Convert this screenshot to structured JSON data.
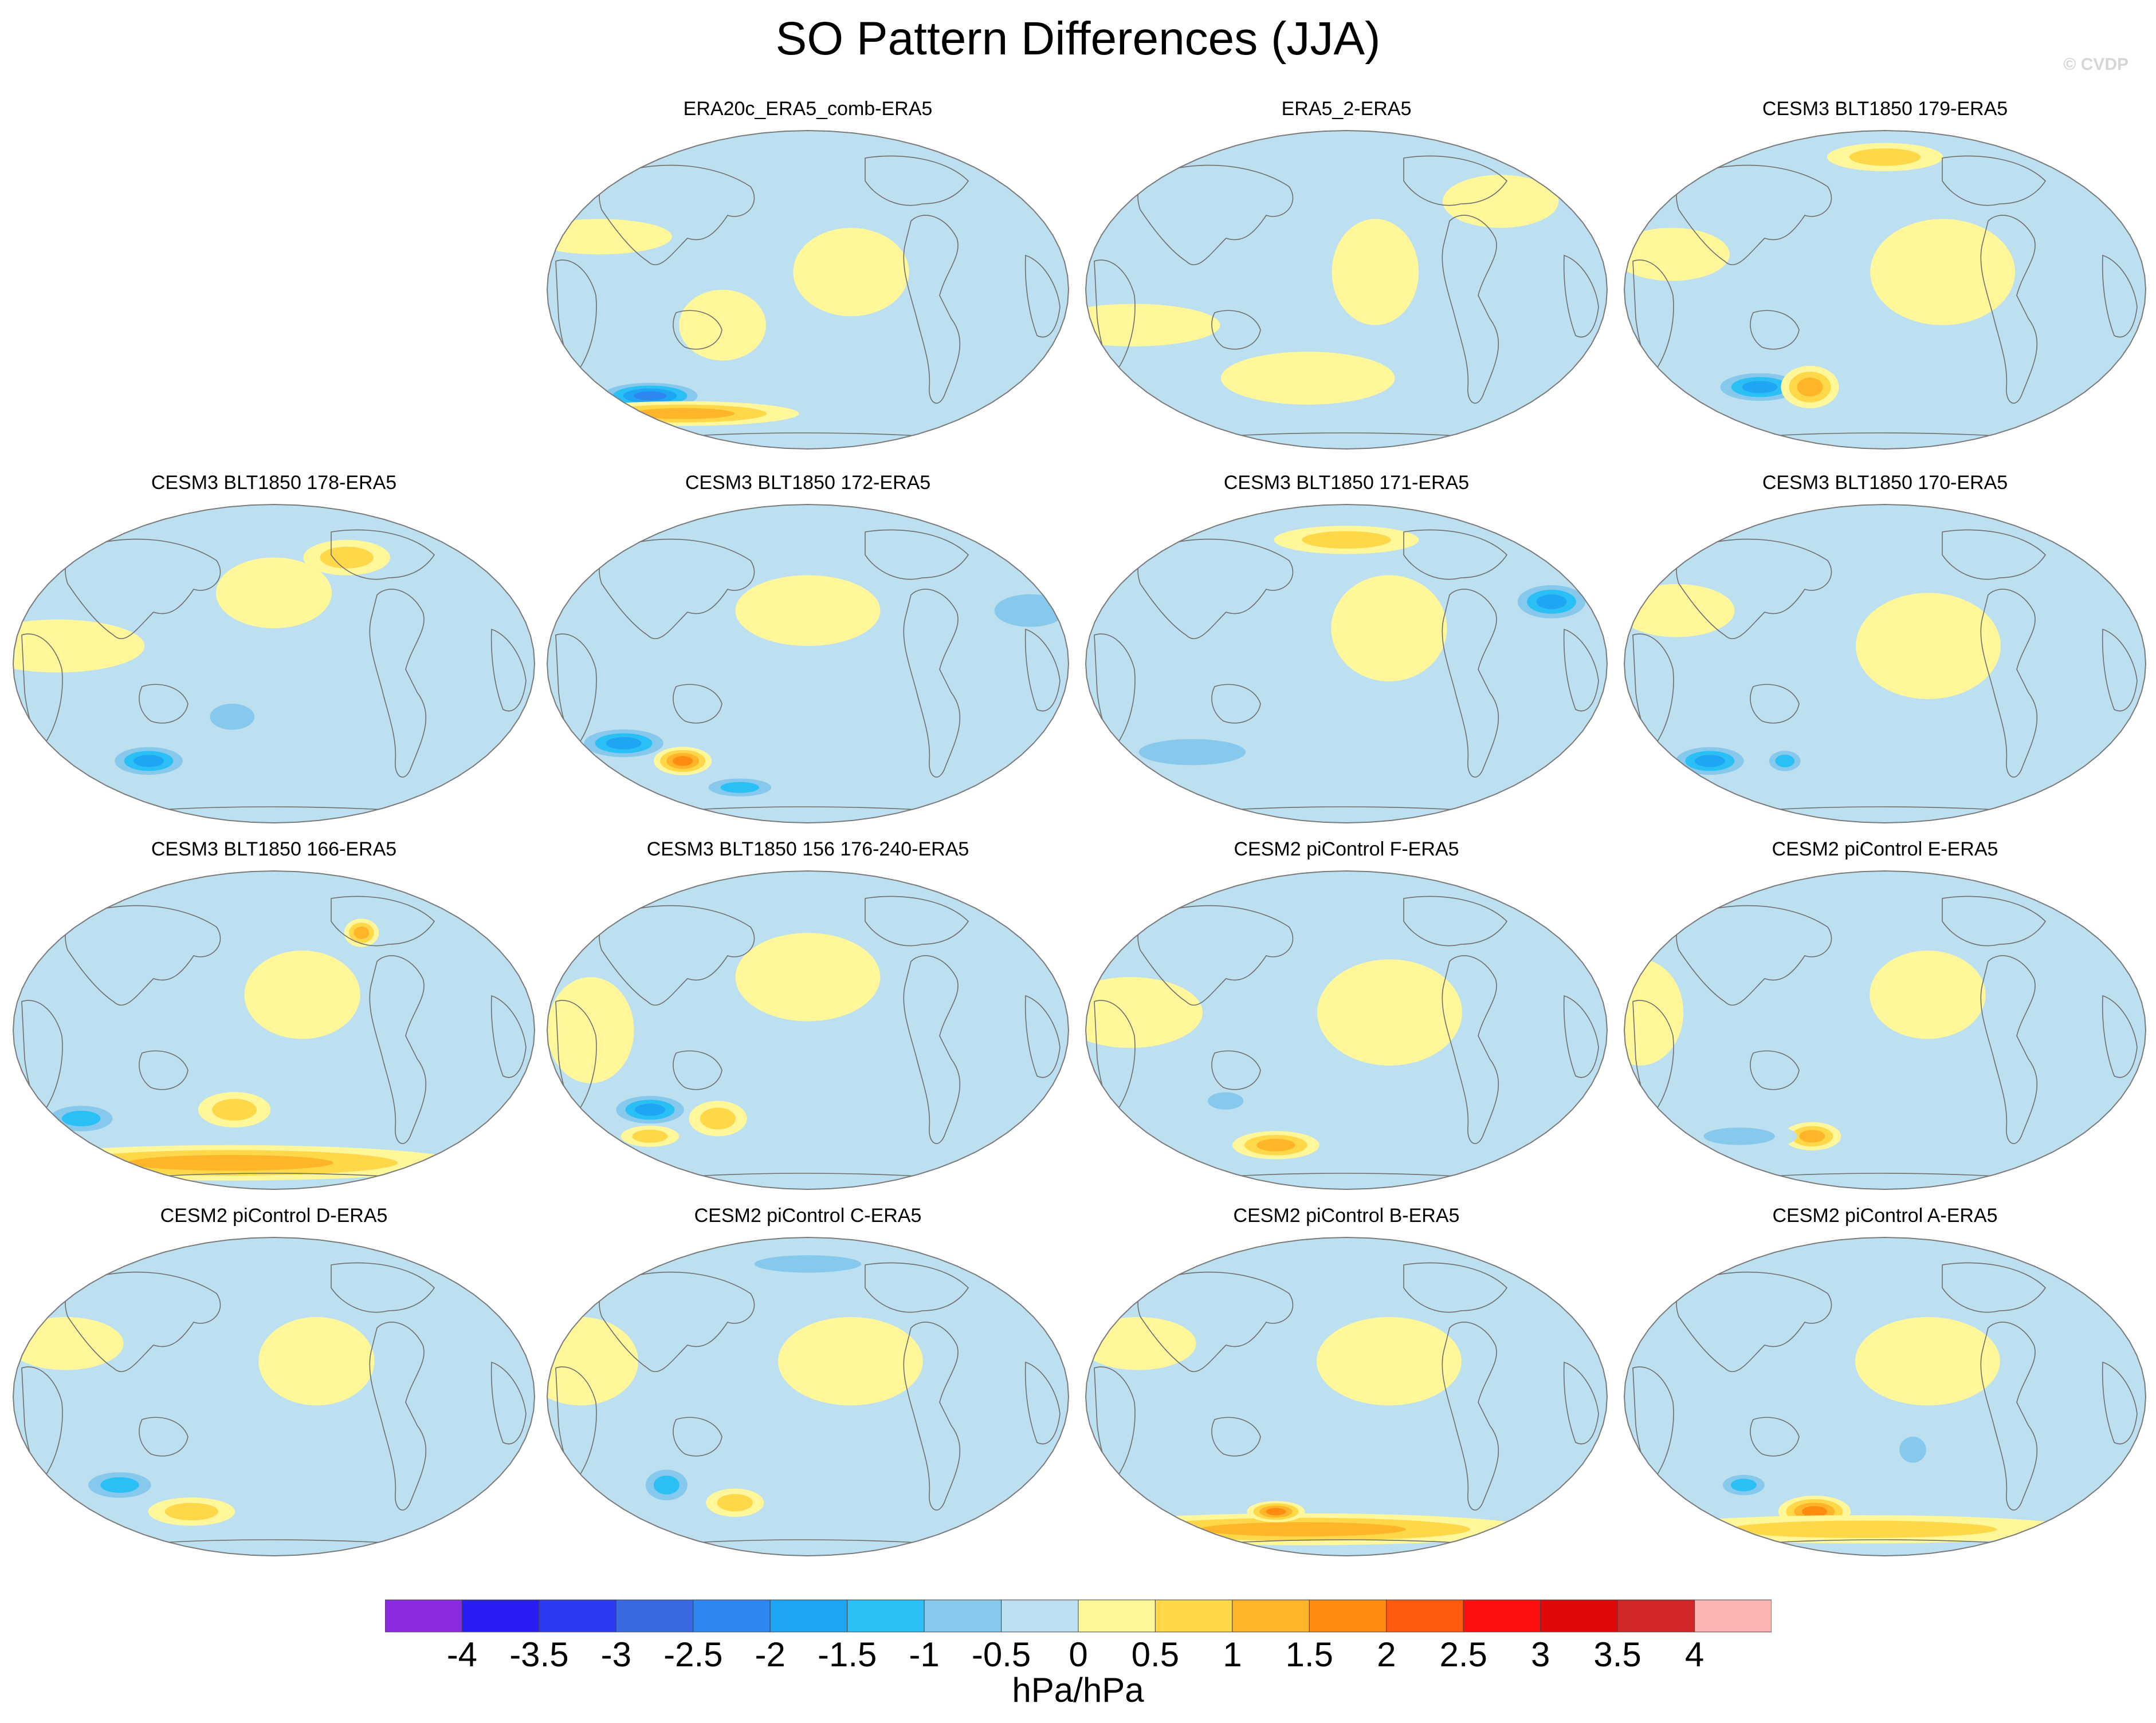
{
  "chart_data": {
    "type": "heatmap",
    "title": "SO Pattern Differences (JJA)",
    "watermark": "© CVDP",
    "units": "hPa/hPa",
    "colorbar": {
      "levels": [
        -4,
        -3.5,
        -3,
        -2.5,
        -2,
        -1.5,
        -1,
        -0.5,
        0,
        0.5,
        1,
        1.5,
        2,
        2.5,
        3,
        3.5,
        4
      ],
      "tick_labels": [
        "-4",
        "-3.5",
        "-3",
        "-2.5",
        "-2",
        "-1.5",
        "-1",
        "-0.5",
        "0",
        "0.5",
        "1",
        "1.5",
        "2",
        "2.5",
        "3",
        "3.5",
        "4"
      ],
      "colors": [
        "#8a2be2",
        "#2a1cf5",
        "#2b3cf0",
        "#3a6ae0",
        "#2e86f0",
        "#1ea6f5",
        "#2ac0f5",
        "#87c9ec",
        "#bde0f0",
        "#fff79a",
        "#ffd84a",
        "#ffb52a",
        "#ff8c10",
        "#ff5a10",
        "#ff1010",
        "#e00808",
        "#d02828",
        "#ffb4b4"
      ]
    },
    "panels": [
      {
        "title": "ERA20c_ERA5_comb-ERA5",
        "row": 0,
        "col": 1,
        "features": [
          {
            "lon": -130,
            "lat": -60,
            "rx": 40,
            "ry": 9,
            "v": -2.5
          },
          {
            "lon": -110,
            "lat": -70,
            "rx": 80,
            "ry": 7,
            "v": 1.4
          },
          {
            "lon": -150,
            "lat": 30,
            "rx": 50,
            "ry": 10,
            "v": 0.5
          },
          {
            "lon": 30,
            "lat": 10,
            "rx": 40,
            "ry": 25,
            "v": 0.5
          },
          {
            "lon": -60,
            "lat": -20,
            "rx": 30,
            "ry": 20,
            "v": 0.5
          }
        ]
      },
      {
        "title": "ERA5_2-ERA5",
        "row": 0,
        "col": 2,
        "features": [
          {
            "lon": 120,
            "lat": 50,
            "rx": 40,
            "ry": 15,
            "v": 0.5
          },
          {
            "lon": -150,
            "lat": -20,
            "rx": 60,
            "ry": 12,
            "v": 0.5
          },
          {
            "lon": -30,
            "lat": -50,
            "rx": 60,
            "ry": 15,
            "v": 0.5
          },
          {
            "lon": 20,
            "lat": 10,
            "rx": 30,
            "ry": 30,
            "v": 0.5
          }
        ]
      },
      {
        "title": "CESM3 BLT1850 179-ERA5",
        "row": 0,
        "col": 3,
        "features": [
          {
            "lon": -100,
            "lat": -55,
            "rx": 35,
            "ry": 10,
            "v": -1.6
          },
          {
            "lon": -60,
            "lat": -55,
            "rx": 20,
            "ry": 12,
            "v": 1.1
          },
          {
            "lon": 0,
            "lat": 75,
            "rx": 40,
            "ry": 8,
            "v": 1.0
          },
          {
            "lon": 40,
            "lat": 10,
            "rx": 50,
            "ry": 30,
            "v": 0.5
          },
          {
            "lon": -150,
            "lat": 20,
            "rx": 40,
            "ry": 15,
            "v": 0.5
          }
        ]
      },
      {
        "title": "CESM3 BLT1850 178-ERA5",
        "row": 1,
        "col": 0,
        "features": [
          {
            "lon": -100,
            "lat": -55,
            "rx": 30,
            "ry": 10,
            "v": -1.8
          },
          {
            "lon": -30,
            "lat": -30,
            "rx": 25,
            "ry": 12,
            "v": -1.0
          },
          {
            "lon": 0,
            "lat": 40,
            "rx": 40,
            "ry": 20,
            "v": 0.5
          },
          {
            "lon": -150,
            "lat": 10,
            "rx": 60,
            "ry": 15,
            "v": 0.5
          },
          {
            "lon": 60,
            "lat": 60,
            "rx": 30,
            "ry": 10,
            "v": 1.0
          }
        ]
      },
      {
        "title": "CESM3 BLT1850 172-ERA5",
        "row": 1,
        "col": 1,
        "features": [
          {
            "lon": -140,
            "lat": -45,
            "rx": 35,
            "ry": 10,
            "v": -1.8
          },
          {
            "lon": -100,
            "lat": -55,
            "rx": 20,
            "ry": 8,
            "v": 1.8
          },
          {
            "lon": -60,
            "lat": -70,
            "rx": 30,
            "ry": 7,
            "v": -1.3
          },
          {
            "lon": 0,
            "lat": 30,
            "rx": 50,
            "ry": 20,
            "v": 0.5
          },
          {
            "lon": 160,
            "lat": 30,
            "rx": 40,
            "ry": 15,
            "v": -0.8
          }
        ]
      },
      {
        "title": "CESM3 BLT1850 171-ERA5",
        "row": 1,
        "col": 2,
        "features": [
          {
            "lon": 150,
            "lat": 35,
            "rx": 30,
            "ry": 12,
            "v": -1.6
          },
          {
            "lon": -120,
            "lat": -50,
            "rx": 60,
            "ry": 12,
            "v": -1.0
          },
          {
            "lon": 30,
            "lat": 20,
            "rx": 40,
            "ry": 30,
            "v": 0.5
          },
          {
            "lon": 0,
            "lat": 70,
            "rx": 50,
            "ry": 8,
            "v": 1.0
          }
        ]
      },
      {
        "title": "CESM3 BLT1850 170-ERA5",
        "row": 1,
        "col": 3,
        "features": [
          {
            "lon": -140,
            "lat": -55,
            "rx": 30,
            "ry": 10,
            "v": -1.8
          },
          {
            "lon": -80,
            "lat": -55,
            "rx": 15,
            "ry": 8,
            "v": -1.4
          },
          {
            "lon": 30,
            "lat": 10,
            "rx": 50,
            "ry": 30,
            "v": 0.5
          },
          {
            "lon": -150,
            "lat": 30,
            "rx": 40,
            "ry": 15,
            "v": 0.5
          }
        ]
      },
      {
        "title": "CESM3 BLT1850 166-ERA5",
        "row": 2,
        "col": 0,
        "features": [
          {
            "lon": -150,
            "lat": -50,
            "rx": 30,
            "ry": 10,
            "v": -1.5
          },
          {
            "lon": -40,
            "lat": -75,
            "rx": 160,
            "ry": 10,
            "v": 1.2
          },
          {
            "lon": -30,
            "lat": -45,
            "rx": 25,
            "ry": 10,
            "v": 0.8
          },
          {
            "lon": 20,
            "lat": 20,
            "rx": 40,
            "ry": 25,
            "v": 0.5
          },
          {
            "lon": 70,
            "lat": 55,
            "rx": 12,
            "ry": 8,
            "v": 1.2
          }
        ]
      },
      {
        "title": "CESM3 BLT1850 156 176-240-ERA5",
        "row": 2,
        "col": 1,
        "features": [
          {
            "lon": -120,
            "lat": -45,
            "rx": 30,
            "ry": 10,
            "v": -1.6
          },
          {
            "lon": -70,
            "lat": -50,
            "rx": 20,
            "ry": 10,
            "v": 1.0
          },
          {
            "lon": -130,
            "lat": -60,
            "rx": 20,
            "ry": 6,
            "v": 1.0
          },
          {
            "lon": 0,
            "lat": 30,
            "rx": 50,
            "ry": 25,
            "v": 0.5
          },
          {
            "lon": -150,
            "lat": 0,
            "rx": 30,
            "ry": 30,
            "v": 0.5
          }
        ]
      },
      {
        "title": "CESM2 piControl F-ERA5",
        "row": 2,
        "col": 2,
        "features": [
          {
            "lon": -60,
            "lat": -65,
            "rx": 30,
            "ry": 8,
            "v": 1.2
          },
          {
            "lon": -90,
            "lat": -40,
            "rx": 20,
            "ry": 8,
            "v": -0.8
          },
          {
            "lon": 30,
            "lat": 10,
            "rx": 50,
            "ry": 30,
            "v": 0.5
          },
          {
            "lon": -150,
            "lat": 10,
            "rx": 50,
            "ry": 20,
            "v": 0.5
          }
        ]
      },
      {
        "title": "CESM2 piControl E-ERA5",
        "row": 2,
        "col": 3,
        "features": [
          {
            "lon": -60,
            "lat": -60,
            "rx": 20,
            "ry": 8,
            "v": 1.2
          },
          {
            "lon": -120,
            "lat": -60,
            "rx": 40,
            "ry": 8,
            "v": -0.8
          },
          {
            "lon": -170,
            "lat": 10,
            "rx": 30,
            "ry": 30,
            "v": 0.5
          },
          {
            "lon": 30,
            "lat": 20,
            "rx": 40,
            "ry": 25,
            "v": 0.5
          }
        ]
      },
      {
        "title": "CESM2 piControl D-ERA5",
        "row": 3,
        "col": 0,
        "features": [
          {
            "lon": -120,
            "lat": -50,
            "rx": 30,
            "ry": 10,
            "v": -1.5
          },
          {
            "lon": -70,
            "lat": -65,
            "rx": 30,
            "ry": 8,
            "v": 1.0
          },
          {
            "lon": 30,
            "lat": 20,
            "rx": 40,
            "ry": 25,
            "v": 0.5
          },
          {
            "lon": -150,
            "lat": 30,
            "rx": 40,
            "ry": 15,
            "v": 0.5
          }
        ]
      },
      {
        "title": "CESM2 piControl C-ERA5",
        "row": 3,
        "col": 1,
        "features": [
          {
            "lon": -110,
            "lat": -50,
            "rx": 20,
            "ry": 12,
            "v": -1.5
          },
          {
            "lon": -60,
            "lat": -60,
            "rx": 20,
            "ry": 8,
            "v": 1.0
          },
          {
            "lon": 0,
            "lat": 75,
            "rx": 60,
            "ry": 8,
            "v": -0.8
          },
          {
            "lon": 30,
            "lat": 20,
            "rx": 50,
            "ry": 25,
            "v": 0.5
          },
          {
            "lon": -160,
            "lat": 20,
            "rx": 40,
            "ry": 25,
            "v": 0.5
          }
        ]
      },
      {
        "title": "CESM2 piControl B-ERA5",
        "row": 3,
        "col": 2,
        "features": [
          {
            "lon": -40,
            "lat": -75,
            "rx": 160,
            "ry": 9,
            "v": 1.2
          },
          {
            "lon": -60,
            "lat": -65,
            "rx": 20,
            "ry": 6,
            "v": 1.8
          },
          {
            "lon": 30,
            "lat": 20,
            "rx": 50,
            "ry": 25,
            "v": 0.5
          },
          {
            "lon": -150,
            "lat": 30,
            "rx": 40,
            "ry": 15,
            "v": 0.5
          }
        ]
      },
      {
        "title": "CESM2 piControl A-ERA5",
        "row": 3,
        "col": 3,
        "features": [
          {
            "lon": -110,
            "lat": -50,
            "rx": 20,
            "ry": 8,
            "v": -1.5
          },
          {
            "lon": -60,
            "lat": -65,
            "rx": 25,
            "ry": 9,
            "v": 1.6
          },
          {
            "lon": -20,
            "lat": -75,
            "rx": 150,
            "ry": 8,
            "v": 1.0
          },
          {
            "lon": 20,
            "lat": -30,
            "rx": 15,
            "ry": 12,
            "v": -1.0
          },
          {
            "lon": 30,
            "lat": 20,
            "rx": 50,
            "ry": 25,
            "v": 0.5
          }
        ]
      }
    ]
  }
}
